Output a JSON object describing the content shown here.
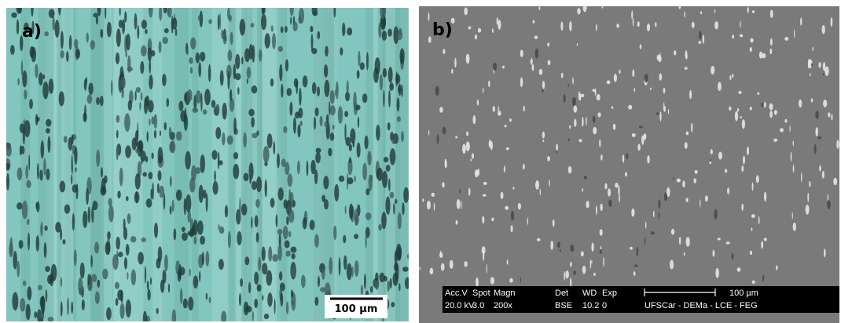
{
  "panels": [
    {
      "label": "a)",
      "scale_bar": "100 µm"
    },
    {
      "label": "b)",
      "scale_bar": "100 µm",
      "info_header": [
        "Acc.V",
        "Spot",
        "Magn",
        "Det",
        "WD",
        "Exp"
      ],
      "info_values": [
        "20.0 kV",
        "3.0",
        "200x",
        "BSE",
        "10.2",
        "0"
      ],
      "lab": "UFSCar - DEMa - LCE - FEG"
    }
  ]
}
